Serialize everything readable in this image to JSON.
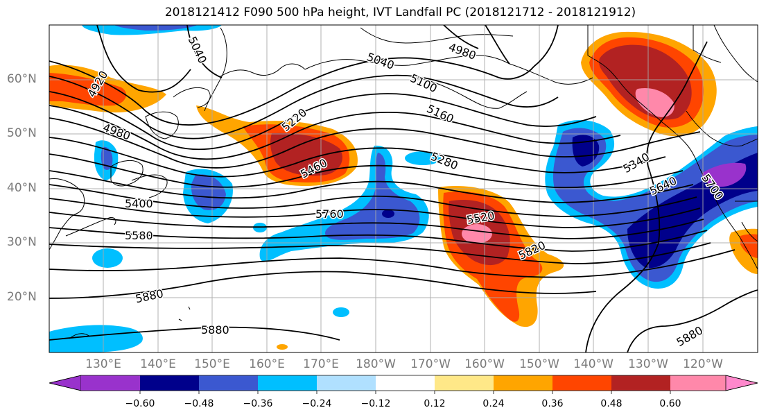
{
  "title": "2018121412 F090 500 hPa height, IVT Landfall PC (2018121712 - 2018121912)",
  "lat_labels": [
    "60°N",
    "50°N",
    "40°N",
    "30°N",
    "20°N"
  ],
  "lon_labels": [
    "130°E",
    "140°E",
    "150°E",
    "160°E",
    "170°E",
    "180°W",
    "170°W",
    "160°W",
    "150°W",
    "140°W",
    "130°W",
    "120°W"
  ],
  "contour_labels": [
    "4920",
    "4980",
    "5040",
    "5040",
    "4980",
    "5100",
    "5160",
    "5220",
    "5280",
    "5340",
    "5460",
    "5400",
    "5520",
    "5580",
    "5640",
    "5700",
    "5760",
    "5820",
    "5880",
    "5880",
    "5880"
  ],
  "colorbar": {
    "ticks": [
      "−0.60",
      "−0.48",
      "−0.36",
      "−0.24",
      "−0.12",
      "0.12",
      "0.24",
      "0.36",
      "0.48",
      "0.60"
    ],
    "colors": [
      "#9932CC",
      "#00008B",
      "#3B58D0",
      "#00BFFF",
      "#B0E0FF",
      "#FFFFFF",
      "#FFE888",
      "#FFA500",
      "#FF4500",
      "#B22222",
      "#FF88AA",
      "#FF88CC"
    ]
  }
}
